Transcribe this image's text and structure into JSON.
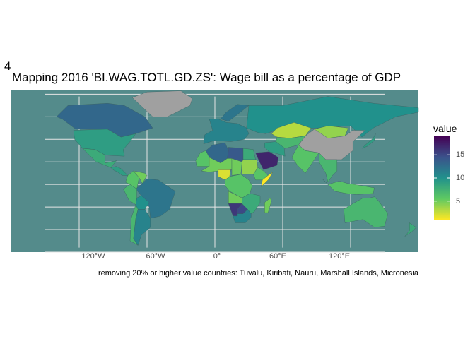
{
  "figure_number": "4",
  "title": "Mapping 2016 'BI.WAG.TOTL.GD.ZS':  Wage bill as a percentage of GDP",
  "caption": "removing 20% or higher value countries:  Tuvalu, Kiribati, Nauru, Marshall Islands, Micronesia",
  "x_ticks": [
    "120°W",
    "60°W",
    "0°",
    "60°E",
    "120°E"
  ],
  "legend": {
    "title": "value",
    "ticks": [
      "15",
      "10",
      "5"
    ],
    "min": 1,
    "max": 19
  },
  "colors": {
    "panel_background": "#548b8b",
    "grid": "#e6e6e6",
    "no_data": "#a0a0a0",
    "scale": [
      "#fde725",
      "#5ec962",
      "#21918c",
      "#3b528b",
      "#440154"
    ]
  },
  "chart_data": {
    "type": "choropleth",
    "variable": "BI.WAG.TOTL.GD.ZS",
    "year": 2016,
    "xlim": [
      -180,
      180
    ],
    "ylim": [
      -60,
      84
    ],
    "longitude_ticks": [
      -120,
      -60,
      0,
      60,
      120
    ],
    "latitude_gridlines": [
      -60,
      -40,
      -20,
      0,
      20,
      40,
      60,
      80
    ],
    "color_scale": "viridis (reversed)",
    "legend_range": [
      1,
      19
    ],
    "excluded_countries": [
      "Tuvalu",
      "Kiribati",
      "Nauru",
      "Marshall Islands",
      "Micronesia"
    ],
    "regions": [
      {
        "name": "Canada",
        "value": 13
      },
      {
        "name": "United States",
        "value": 9
      },
      {
        "name": "Greenland",
        "value": null
      },
      {
        "name": "Mexico",
        "value": 8
      },
      {
        "name": "Central America",
        "value": 9
      },
      {
        "name": "Colombia",
        "value": 6
      },
      {
        "name": "Venezuela",
        "value": 5
      },
      {
        "name": "Brazil",
        "value": 12
      },
      {
        "name": "Peru",
        "value": 7
      },
      {
        "name": "Bolivia",
        "value": 10
      },
      {
        "name": "Argentina",
        "value": 11
      },
      {
        "name": "Chile",
        "value": 7
      },
      {
        "name": "Western Europe",
        "value": 11
      },
      {
        "name": "Scandinavia",
        "value": 12
      },
      {
        "name": "Russia",
        "value": 10
      },
      {
        "name": "Algeria",
        "value": 13
      },
      {
        "name": "Libya",
        "value": 14
      },
      {
        "name": "Egypt",
        "value": 8
      },
      {
        "name": "Western Sahara/Mauritania",
        "value": 6
      },
      {
        "name": "Mali/Niger",
        "value": 5
      },
      {
        "name": "Chad",
        "value": 5
      },
      {
        "name": "Sudan",
        "value": 4
      },
      {
        "name": "Nigeria",
        "value": 2
      },
      {
        "name": "Ethiopia",
        "value": 6
      },
      {
        "name": "Somalia",
        "value": 1
      },
      {
        "name": "Congo Basin",
        "value": 6
      },
      {
        "name": "Angola",
        "value": 5
      },
      {
        "name": "Namibia",
        "value": 16
      },
      {
        "name": "Botswana",
        "value": 15
      },
      {
        "name": "Zambia/Mozambique",
        "value": 8
      },
      {
        "name": "South Africa",
        "value": 11
      },
      {
        "name": "Madagascar",
        "value": 5
      },
      {
        "name": "Saudi Arabia",
        "value": 17
      },
      {
        "name": "Iran",
        "value": 9
      },
      {
        "name": "Kazakhstan",
        "value": 3
      },
      {
        "name": "Central Asia",
        "value": 7
      },
      {
        "name": "Mongolia",
        "value": 4
      },
      {
        "name": "China",
        "value": null
      },
      {
        "name": "India",
        "value": 6
      },
      {
        "name": "Southeast Asia",
        "value": 7
      },
      {
        "name": "Japan",
        "value": 9
      },
      {
        "name": "Indonesia",
        "value": 6
      },
      {
        "name": "Australia",
        "value": 7
      },
      {
        "name": "New Zealand",
        "value": 8
      }
    ]
  }
}
